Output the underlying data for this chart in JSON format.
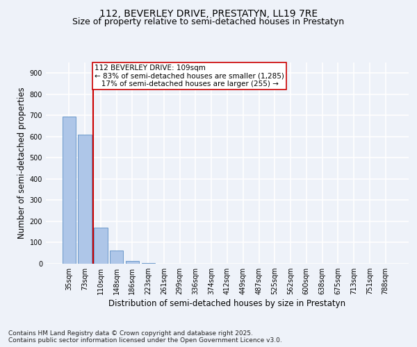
{
  "title_line1": "112, BEVERLEY DRIVE, PRESTATYN, LL19 7RE",
  "title_line2": "Size of property relative to semi-detached houses in Prestatyn",
  "xlabel": "Distribution of semi-detached houses by size in Prestatyn",
  "ylabel": "Number of semi-detached properties",
  "categories": [
    "35sqm",
    "73sqm",
    "110sqm",
    "148sqm",
    "186sqm",
    "223sqm",
    "261sqm",
    "299sqm",
    "336sqm",
    "374sqm",
    "412sqm",
    "449sqm",
    "487sqm",
    "525sqm",
    "562sqm",
    "600sqm",
    "638sqm",
    "675sqm",
    "713sqm",
    "751sqm",
    "788sqm"
  ],
  "values": [
    695,
    610,
    170,
    62,
    14,
    2,
    0,
    0,
    0,
    0,
    0,
    0,
    0,
    0,
    0,
    0,
    0,
    0,
    0,
    0,
    0
  ],
  "bar_color": "#aec6e8",
  "bar_edge_color": "#5b8ec4",
  "vline_color": "#cc0000",
  "annotation_text_line1": "112 BEVERLEY DRIVE: 109sqm",
  "annotation_text_line2": "← 83% of semi-detached houses are smaller (1,285)",
  "annotation_text_line3": "   17% of semi-detached houses are larger (255) →",
  "annotation_box_color": "#ffffff",
  "annotation_box_edge": "#cc0000",
  "ylim": [
    0,
    950
  ],
  "yticks": [
    0,
    100,
    200,
    300,
    400,
    500,
    600,
    700,
    800,
    900
  ],
  "footer_text": "Contains HM Land Registry data © Crown copyright and database right 2025.\nContains public sector information licensed under the Open Government Licence v3.0.",
  "background_color": "#eef2f9",
  "grid_color": "#ffffff",
  "title_fontsize": 10,
  "subtitle_fontsize": 9,
  "axis_label_fontsize": 8.5,
  "tick_fontsize": 7,
  "annotation_fontsize": 7.5,
  "footer_fontsize": 6.5
}
